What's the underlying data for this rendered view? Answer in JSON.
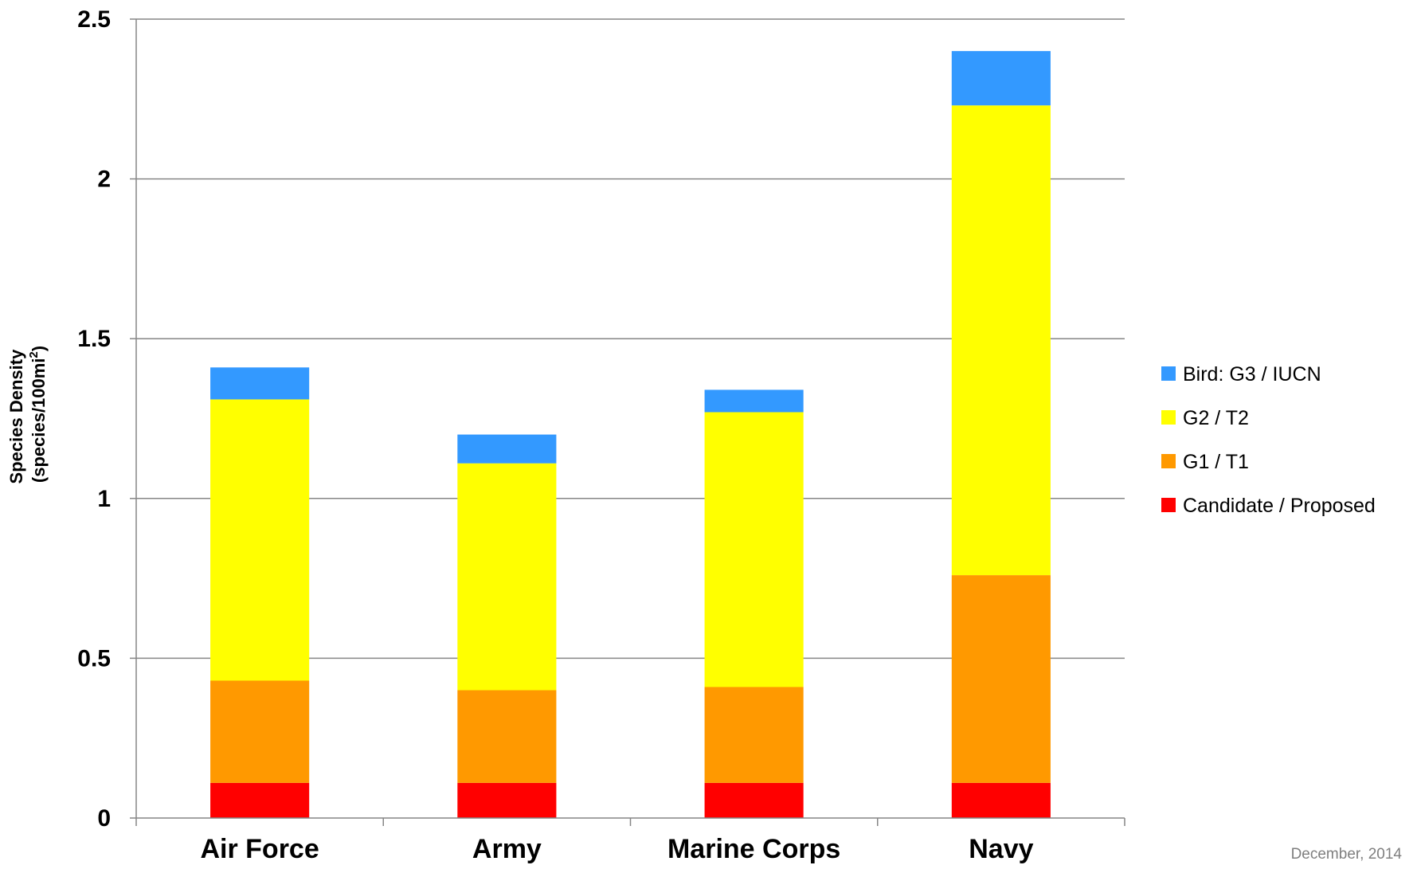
{
  "chart_data": {
    "type": "bar",
    "stacked": true,
    "categories": [
      "Air Force",
      "Army",
      "Marine Corps",
      "Navy"
    ],
    "series": [
      {
        "name": "Candidate / Proposed",
        "color": "#ff0000",
        "values": [
          0.11,
          0.11,
          0.11,
          0.11
        ]
      },
      {
        "name": "G1 / T1",
        "color": "#ff9900",
        "values": [
          0.32,
          0.29,
          0.3,
          0.65
        ]
      },
      {
        "name": "G2 / T2",
        "color": "#ffff00",
        "values": [
          0.88,
          0.71,
          0.86,
          1.47
        ]
      },
      {
        "name": "Bird: G3 / IUCN",
        "color": "#3399ff",
        "values": [
          0.1,
          0.09,
          0.07,
          0.17
        ]
      }
    ],
    "ylabel_line1": "Species Density",
    "ylabel_line2_prefix": "(species/100mi",
    "ylabel_line2_sup": "2",
    "ylabel_line2_suffix": ")",
    "ylim": [
      0,
      2.5
    ],
    "yticks": [
      0,
      0.5,
      1,
      1.5,
      2,
      2.5
    ],
    "ytick_labels": [
      "0",
      "0.5",
      "1",
      "1.5",
      "2",
      "2.5"
    ],
    "grid": true,
    "legend_position": "right",
    "legend_order": [
      "Bird: G3 / IUCN",
      "G2 / T2",
      "G1 / T1",
      "Candidate / Proposed"
    ]
  },
  "footer_date": "December, 2014"
}
